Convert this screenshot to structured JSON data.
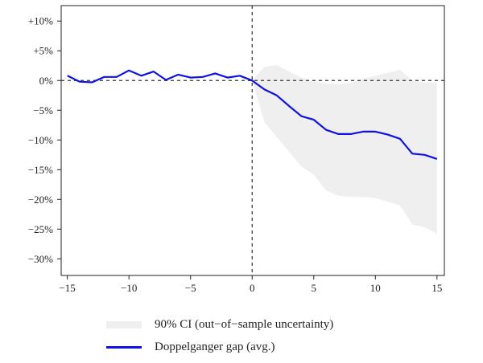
{
  "chart_data": {
    "type": "line",
    "x_ticks": [
      -15,
      -10,
      -5,
      0,
      5,
      10,
      15
    ],
    "x_tick_labels": [
      "−15",
      "−10",
      "−5",
      "0",
      "5",
      "10",
      "15"
    ],
    "y_ticks": [
      10,
      5,
      0,
      -5,
      -10,
      -15,
      -20,
      -25,
      -30
    ],
    "y_tick_labels": [
      "+10%",
      "+5%",
      "0%",
      "−5%",
      "−10%",
      "−15%",
      "−20%",
      "−25%",
      "−30%"
    ],
    "xlim": [
      -15.5,
      15.6
    ],
    "ylim": [
      -32.8,
      12.6
    ],
    "reference_lines": {
      "vertical_x": 0,
      "horizontal_y": 0,
      "style": "dashed"
    },
    "series": [
      {
        "name": "Doppelganger gap (avg.)",
        "color": "#1010e8",
        "x": [
          -15,
          -14,
          -13,
          -12,
          -11,
          -10,
          -9,
          -8,
          -7,
          -6,
          -5,
          -4,
          -3,
          -2,
          -1,
          0,
          1,
          2,
          3,
          4,
          5,
          6,
          7,
          8,
          9,
          10,
          11,
          12,
          13,
          14,
          15
        ],
        "y": [
          0.8,
          -0.2,
          -0.3,
          0.6,
          0.6,
          1.7,
          0.8,
          1.5,
          0.1,
          1.0,
          0.5,
          0.6,
          1.2,
          0.5,
          0.8,
          0.0,
          -1.5,
          -2.5,
          -4.3,
          -6.0,
          -6.6,
          -8.3,
          -9.0,
          -9.0,
          -8.6,
          -8.6,
          -9.1,
          -9.8,
          -12.3,
          -12.5,
          -13.2
        ]
      }
    ],
    "band": {
      "name": "90% CI (out−of−sample uncertainty)",
      "color": "#efefef",
      "x": [
        0,
        1,
        2,
        3,
        4,
        5,
        6,
        7,
        8,
        9,
        10,
        11,
        12,
        13,
        14,
        15
      ],
      "upper": [
        0.0,
        2.3,
        2.6,
        1.5,
        0.5,
        -0.2,
        -0.5,
        -0.6,
        -0.4,
        0.3,
        0.8,
        1.3,
        1.8,
        0.0,
        -0.4,
        -0.3
      ],
      "lower": [
        0.0,
        -7.0,
        -9.5,
        -12.0,
        -14.5,
        -15.8,
        -18.5,
        -19.4,
        -19.6,
        -19.6,
        -19.8,
        -20.4,
        -21.0,
        -24.2,
        -24.7,
        -25.8
      ]
    },
    "legend_position": "bottom",
    "grid": false
  },
  "legend": {
    "ci_label": "90% CI (out−of−sample uncertainty)",
    "line_label": "Doppelganger gap (avg.)"
  }
}
